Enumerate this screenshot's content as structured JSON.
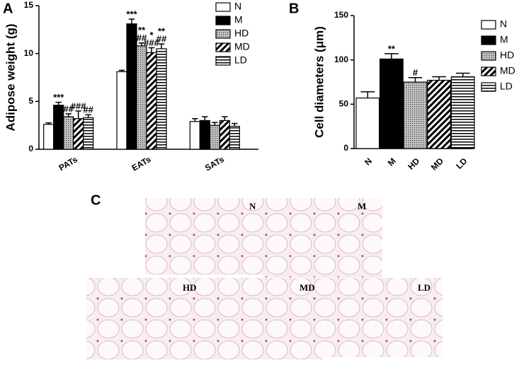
{
  "chart_data": [
    {
      "type": "grouped_bar",
      "panel": "A",
      "ylabel": "Adipose weight (g)",
      "categories": [
        "PATs",
        "EATs",
        "SATs"
      ],
      "ylim": [
        0,
        15
      ],
      "yticks": [
        0,
        5,
        10,
        15
      ],
      "series": [
        {
          "name": "N",
          "color": "#ffffff",
          "pattern": "solid",
          "values": [
            2.6,
            8.1,
            2.9
          ],
          "errors": [
            0.15,
            0.15,
            0.3
          ],
          "annotations": [
            null,
            null,
            null
          ]
        },
        {
          "name": "M",
          "color": "#000000",
          "pattern": "solid",
          "values": [
            4.6,
            13.1,
            3.0
          ],
          "errors": [
            0.3,
            0.5,
            0.4
          ],
          "annotations": [
            [
              "***"
            ],
            [
              "***"
            ],
            null
          ]
        },
        {
          "name": "HD",
          "color": "#888888",
          "pattern": "dots",
          "values": [
            3.4,
            10.8,
            2.5
          ],
          "errors": [
            0.3,
            0.3,
            0.3
          ],
          "annotations": [
            [
              "##"
            ],
            [
              "**",
              "##"
            ],
            null
          ]
        },
        {
          "name": "MD",
          "color": "#000000",
          "pattern": "diagonal",
          "values": [
            3.2,
            10.1,
            3.0
          ],
          "errors": [
            0.8,
            0.5,
            0.4
          ],
          "annotations": [
            [
              "###"
            ],
            [
              "*",
              "###"
            ],
            null
          ]
        },
        {
          "name": "LD",
          "color": "#000000",
          "pattern": "horizontal",
          "values": [
            3.3,
            10.5,
            2.4
          ],
          "errors": [
            0.3,
            0.5,
            0.3
          ],
          "annotations": [
            [
              "##"
            ],
            [
              "**",
              "##"
            ],
            null
          ]
        }
      ],
      "legend": true
    },
    {
      "type": "bar",
      "panel": "B",
      "ylabel": "Cell diameters (μm)",
      "categories": [
        "N",
        "M",
        "HD",
        "MD",
        "LD"
      ],
      "values": [
        57,
        101,
        75,
        77,
        81
      ],
      "errors": [
        7,
        6,
        5,
        4,
        4
      ],
      "colors": [
        "#ffffff",
        "#000000",
        "#888888",
        "#000000",
        "#000000"
      ],
      "patterns": [
        "solid",
        "solid",
        "dots",
        "diagonal",
        "horizontal"
      ],
      "annotations": [
        null,
        [
          "**"
        ],
        [
          "#"
        ],
        null,
        null
      ],
      "ylim": [
        0,
        150
      ],
      "yticks": [
        0,
        50,
        100,
        150
      ],
      "legend": true
    }
  ],
  "micrographs": {
    "panel": "C",
    "images": [
      {
        "label": "N"
      },
      {
        "label": "M"
      },
      {
        "label": "HD"
      },
      {
        "label": "MD"
      },
      {
        "label": "LD"
      }
    ]
  }
}
